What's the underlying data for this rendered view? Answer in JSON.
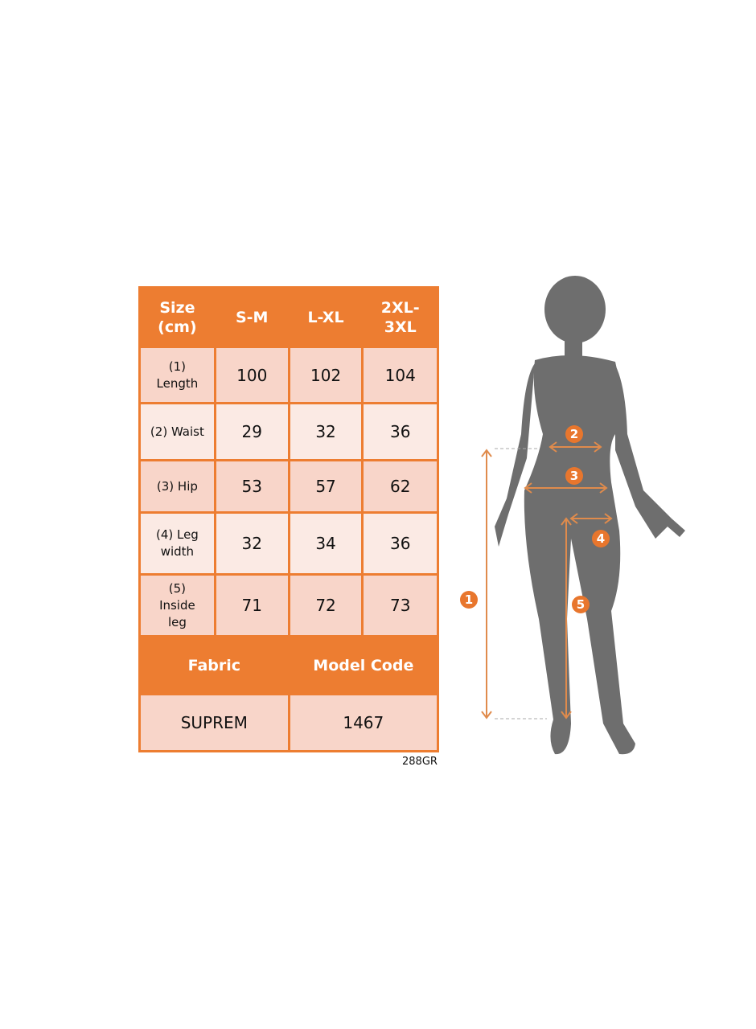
{
  "table": {
    "headers": [
      "Size\n(cm)",
      "S-M",
      "L-XL",
      "2XL-\n3XL"
    ],
    "rows": [
      {
        "label": "(1)\nLength",
        "values": [
          "100",
          "102",
          "104"
        ]
      },
      {
        "label": "(2) Waist",
        "values": [
          "29",
          "32",
          "36"
        ]
      },
      {
        "label": "(3) Hip",
        "values": [
          "53",
          "57",
          "62"
        ]
      },
      {
        "label": "(4) Leg\nwidth",
        "values": [
          "32",
          "34",
          "36"
        ]
      },
      {
        "label": "(5)\nInside\nleg",
        "values": [
          "71",
          "72",
          "73"
        ]
      }
    ],
    "fabric_header": "Fabric",
    "model_code_header": "Model Code",
    "fabric": "SUPREM",
    "model_code": "1467"
  },
  "sku": "288GR",
  "figure": {
    "markers": [
      "1",
      "2",
      "3",
      "4",
      "5"
    ]
  },
  "colors": {
    "accent": "#ED7D31",
    "row_dark": "#F8D5C9",
    "row_light": "#FBEAE4",
    "silhouette": "#6E6E6E"
  }
}
